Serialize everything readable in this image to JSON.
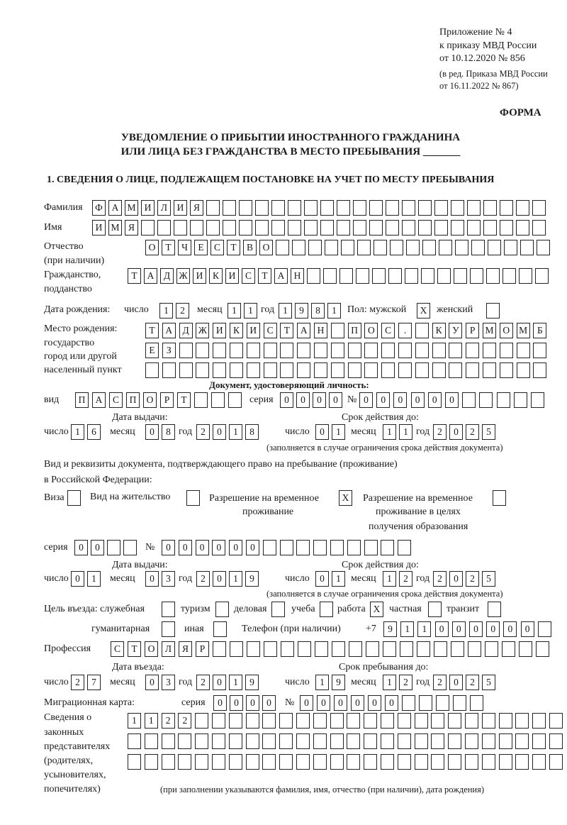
{
  "header": {
    "appendix": "Приложение № 4",
    "order_to": "к приказу МВД России",
    "order_date": "от 10.12.2020 № 856",
    "edition_1": "(в ред. Приказа МВД России",
    "edition_2": "от 16.11.2022 № 867)",
    "form_label": "ФОРМА",
    "title_1": "УВЕДОМЛЕНИЕ О ПРИБЫТИИ ИНОСТРАННОГО ГРАЖДАНИНА",
    "title_2": "ИЛИ ЛИЦА БЕЗ ГРАЖДАНСТВА В МЕСТО ПРЕБЫВАНИЯ _______",
    "section_1": "1. СВЕДЕНИЯ О ЛИЦЕ, ПОДЛЕЖАЩЕМ ПОСТАНОВКЕ НА УЧЕТ ПО МЕСТУ ПРЕБЫВАНИЯ"
  },
  "labels": {
    "surname": "Фамилия",
    "name": "Имя",
    "patronymic": "Отчество",
    "patronymic_note": "(при наличии)",
    "citizenship_1": "Гражданство,",
    "citizenship_2": "подданство",
    "birth_date": "Дата рождения:",
    "day": "число",
    "month": "месяц",
    "year": "год",
    "sex": "Пол: мужской",
    "female": "женский",
    "birthplace_1": "Место рождения:",
    "birthplace_2": "государство",
    "birthplace_3": "город или другой",
    "birthplace_4": "населенный пункт",
    "id_doc": "Документ, удостоверяющий личность:",
    "kind": "вид",
    "series": "серия",
    "number": "№",
    "issue_date": "Дата выдачи:",
    "valid_until": "Срок действия до:",
    "validity_note": "(заполняется в случае ограничения срока действия документа)",
    "right_doc_1": "Вид и реквизиты документа, подтверждающего право на пребывание (проживание)",
    "right_doc_2": "в Российской Федерации:",
    "visa": "Виза",
    "residence": "Вид на жительство",
    "temp_1": "Разрешение на временное",
    "temp_2": "проживание",
    "edu_1": "Разрешение на временное",
    "edu_2": "проживание в целях",
    "edu_3": "получения образования",
    "purpose": "Цель въезда: служебная",
    "tourism": "туризм",
    "business": "деловая",
    "study": "учеба",
    "work": "работа",
    "private": "частная",
    "transit": "транзит",
    "humanitarian": "гуманитарная",
    "other": "иная",
    "phone": "Телефон (при наличии)",
    "phone_prefix": "+7",
    "profession": "Профессия",
    "entry_date": "Дата въезда:",
    "stay_until": "Срок пребывания до:",
    "migration_card": "Миграционная карта:",
    "reps_1": "Сведения о",
    "reps_2": "законных",
    "reps_3": "представителях",
    "reps_4": "(родителях,",
    "reps_5": "усыновителях,",
    "reps_6": "попечителях)",
    "reps_note": "(при заполнении указываются фамилия, имя, отчество (при наличии), дата рождения)"
  },
  "person": {
    "surname": "ФАМИЛИЯ",
    "name": "ИМЯ",
    "patronymic": "ОТЧЕСТВО",
    "citizenship": "ТАДЖИКИСТАН",
    "birth_day": "12",
    "birth_month": "11",
    "birth_year": "1981",
    "male": "X",
    "female": "",
    "birthplace_1": "ТАДЖИКИСТАН ПОС. КУРМОМБ",
    "birthplace_2": "ЕЗ",
    "birthplace_3": ""
  },
  "id_document": {
    "kind": "ПАСПОРТ",
    "series": "0000",
    "number": "000000",
    "issue_day": "16",
    "issue_month": "08",
    "issue_year": "2018",
    "valid_day": "01",
    "valid_month": "11",
    "valid_year": "2025"
  },
  "right_document": {
    "visa": "",
    "residence_permit": "",
    "temporary_residence": "X",
    "temporary_residence_education": "",
    "series": "00",
    "number": "000000",
    "issue_day": "01",
    "issue_month": "03",
    "issue_year": "2019",
    "valid_day": "01",
    "valid_month": "12",
    "valid_year": "2025"
  },
  "purpose": {
    "official": "",
    "tourism": "",
    "business": "",
    "study": "",
    "work": "X",
    "private": "",
    "transit": "",
    "humanitarian": "",
    "other": ""
  },
  "phone": "911000000",
  "profession": "СТОЛЯР",
  "entry": {
    "entry_day": "27",
    "entry_month": "03",
    "entry_year": "2019",
    "stay_day": "19",
    "stay_month": "12",
    "stay_year": "2025"
  },
  "migration_card": {
    "series": "0000",
    "number": "000000"
  },
  "representatives": {
    "row_1": "1122",
    "row_2": "",
    "row_3": ""
  }
}
